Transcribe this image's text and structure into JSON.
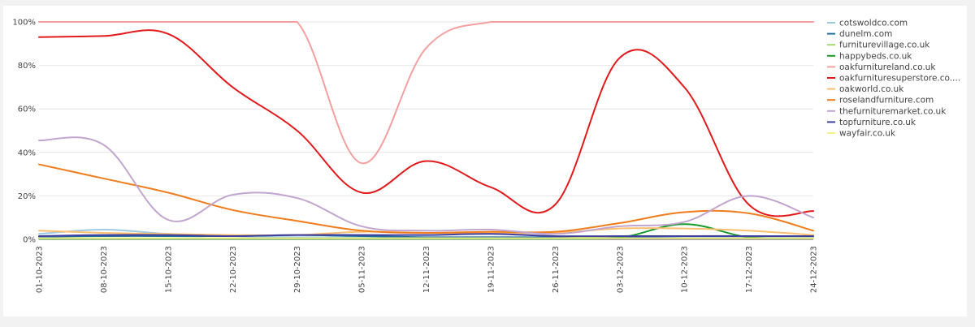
{
  "chart_data": {
    "type": "line",
    "x": [
      "01-10-2023",
      "08-10-2023",
      "15-10-2023",
      "22-10-2023",
      "29-10-2023",
      "05-11-2023",
      "12-11-2023",
      "19-11-2023",
      "26-11-2023",
      "03-12-2023",
      "10-12-2023",
      "17-12-2023",
      "24-12-2023"
    ],
    "yticks": [
      "0%",
      "20%",
      "40%",
      "60%",
      "80%",
      "100%"
    ],
    "ylim": [
      0,
      100
    ],
    "grid": "horizontal",
    "legend": "right",
    "series": [
      {
        "name": "cotswoldco.com",
        "color": "#9ecae1",
        "values": [
          2.5,
          4.5,
          2.5,
          1.5,
          1,
          1,
          0.8,
          0.5,
          0.5,
          0.8,
          1,
          1,
          1
        ]
      },
      {
        "name": "dunelm.com",
        "color": "#1f6f9f",
        "values": [
          1.2,
          1.5,
          1.5,
          1.5,
          2,
          1.5,
          1,
          1,
          1,
          1,
          1.5,
          1.5,
          1.5
        ]
      },
      {
        "name": "furniturevillage.co.uk",
        "color": "#a6d96a",
        "values": [
          0.5,
          0.5,
          0.5,
          0.5,
          0.5,
          0.5,
          0.5,
          0.5,
          0.5,
          1.5,
          1.5,
          1.5,
          1.5
        ]
      },
      {
        "name": "happybeds.co.uk",
        "color": "#1a9a2a",
        "values": [
          0.3,
          0.3,
          0.3,
          0.3,
          0.3,
          0.3,
          0.3,
          0.3,
          0.3,
          0.8,
          7,
          1,
          0.5
        ]
      },
      {
        "name": "oakfurnitureland.co.uk",
        "color": "#f4a0a0",
        "values": [
          100,
          100,
          100,
          100,
          100,
          35,
          88,
          100,
          100,
          100,
          100,
          100,
          100
        ]
      },
      {
        "name": "oakfurnituresuperstore.co....",
        "color": "#e31a1c",
        "values": [
          93,
          93.5,
          94.5,
          70,
          50,
          21.5,
          36,
          24,
          16,
          83.5,
          70,
          16,
          13
        ]
      },
      {
        "name": "oakworld.co.uk",
        "color": "#fdbf6f",
        "values": [
          4,
          3,
          2.5,
          2,
          2,
          3.5,
          3,
          3,
          3,
          5,
          5,
          4,
          2
        ]
      },
      {
        "name": "roselandfurniture.com",
        "color": "#f07c1c",
        "values": [
          34.5,
          28,
          21.5,
          13.5,
          8.5,
          4,
          3,
          3.5,
          3.5,
          7.5,
          12.5,
          12,
          4
        ]
      },
      {
        "name": "thefurnituremarket.co.uk",
        "color": "#c2a5cf",
        "values": [
          45.5,
          43.5,
          9,
          20.5,
          19,
          6,
          4,
          4.5,
          2.5,
          6,
          8,
          20,
          10
        ]
      },
      {
        "name": "topfurniture.co.uk",
        "color": "#3f3f9f",
        "values": [
          1.5,
          2,
          2,
          1.5,
          2,
          2,
          2,
          2.5,
          1.5,
          1.5,
          1.5,
          1.5,
          1.5
        ]
      },
      {
        "name": "wayfair.co.uk",
        "color": "#f5f08a",
        "values": [
          0.5,
          0.5,
          0.5,
          0.5,
          0.5,
          0.5,
          0.5,
          0.5,
          0.5,
          0.5,
          0.5,
          0.5,
          0.5
        ]
      }
    ]
  }
}
